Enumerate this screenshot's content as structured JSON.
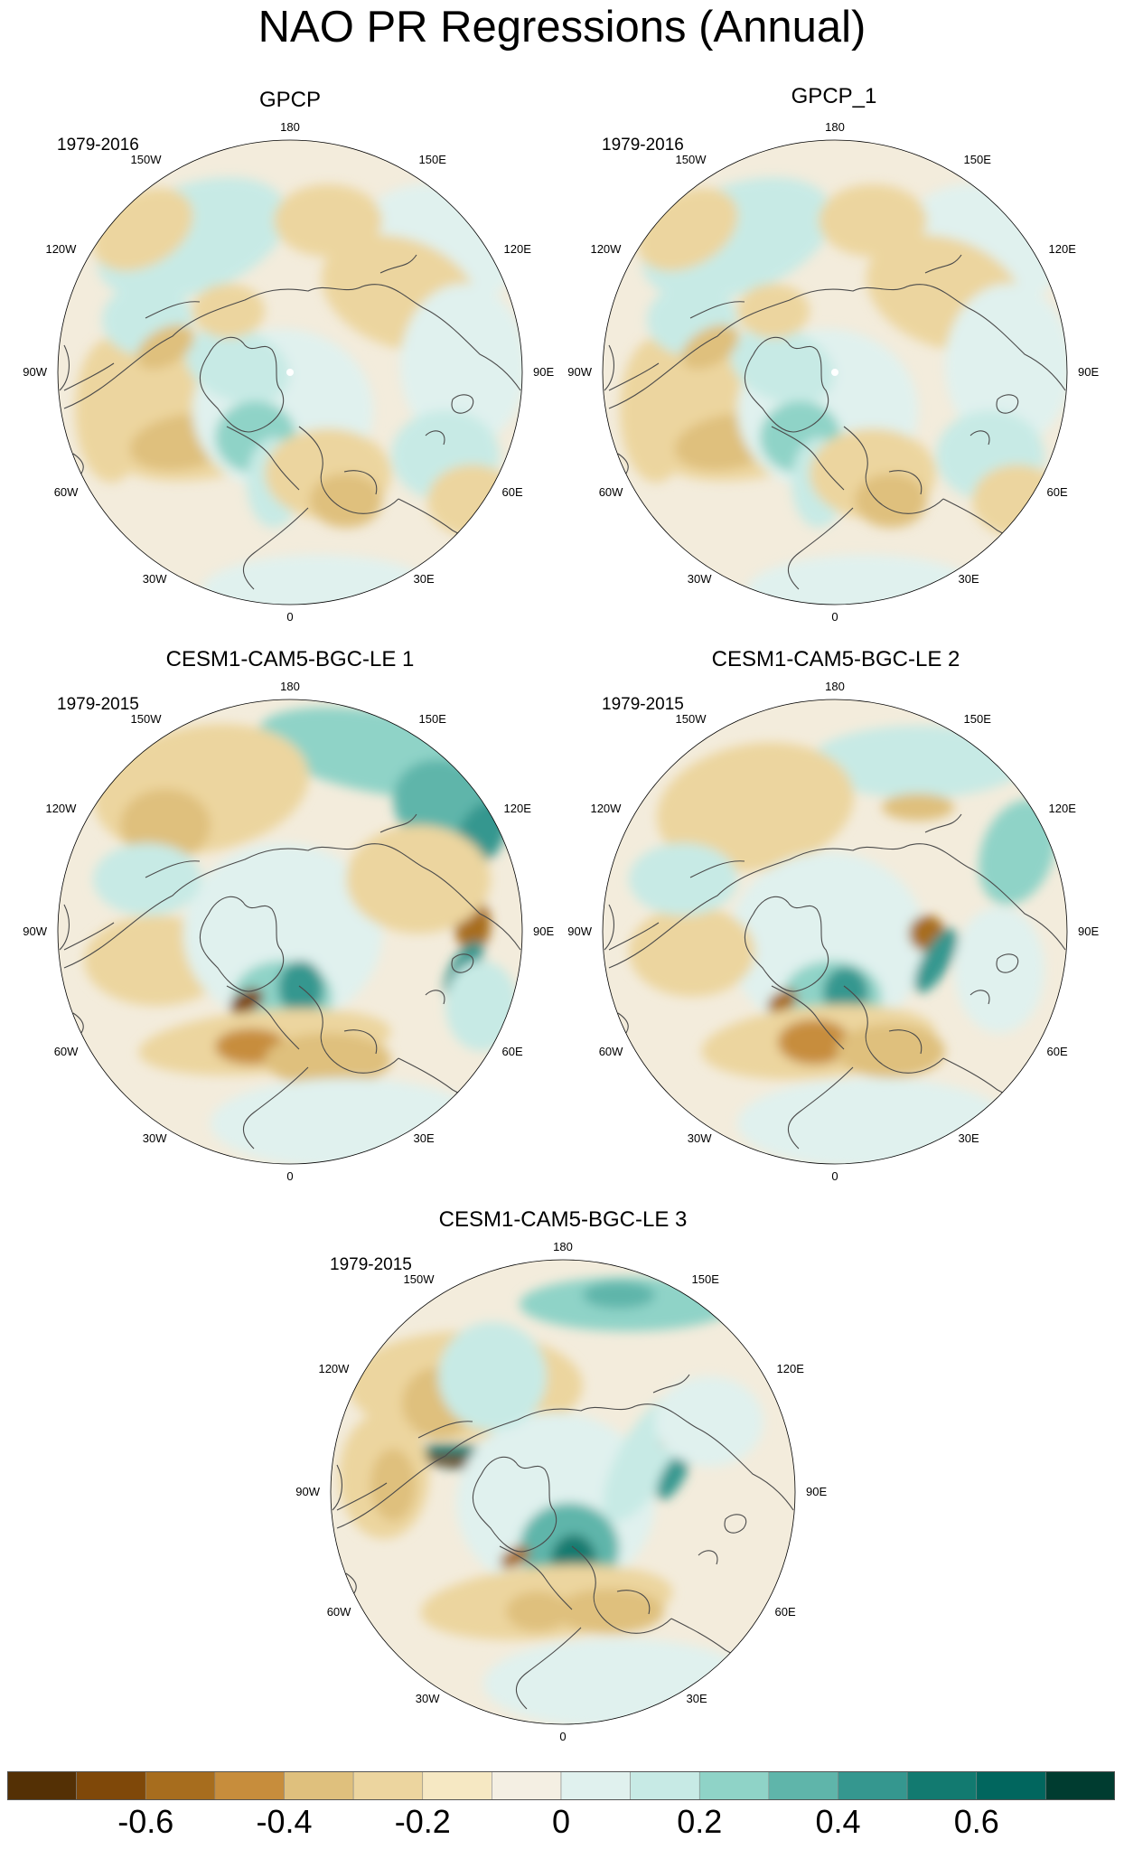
{
  "title": "NAO PR Regressions (Annual)",
  "colors": {
    "land_line": "#4a4a4a",
    "map_border": "#000000",
    "bg_neutral": "#f3ecdc"
  },
  "panels": [
    {
      "title": "GPCP",
      "period": "1979-2016"
    },
    {
      "title": "GPCP_1",
      "period": "1979-2016"
    },
    {
      "title": "CESM1-CAM5-BGC-LE 1",
      "period": "1979-2015"
    },
    {
      "title": "CESM1-CAM5-BGC-LE 2",
      "period": "1979-2015"
    },
    {
      "title": "CESM1-CAM5-BGC-LE 3",
      "period": "1979-2015"
    }
  ],
  "lon_labels": [
    "180",
    "150E",
    "120E",
    "90E",
    "60E",
    "30E",
    "0",
    "30W",
    "60W",
    "90W",
    "120W",
    "150W"
  ],
  "colorbar": {
    "colors": [
      "#543005",
      "#7f4809",
      "#a76d1e",
      "#c78d3c",
      "#dfc07d",
      "#ecd59f",
      "#f6e8c3",
      "#f4efe3",
      "#e0f1ee",
      "#c7eae5",
      "#8fd3c7",
      "#5fb5aa",
      "#35978f",
      "#127a70",
      "#01665e",
      "#003c30"
    ],
    "tick_labels": [
      "-0.6",
      "-0.4",
      "-0.2",
      "0",
      "0.2",
      "0.4",
      "0.6"
    ]
  }
}
